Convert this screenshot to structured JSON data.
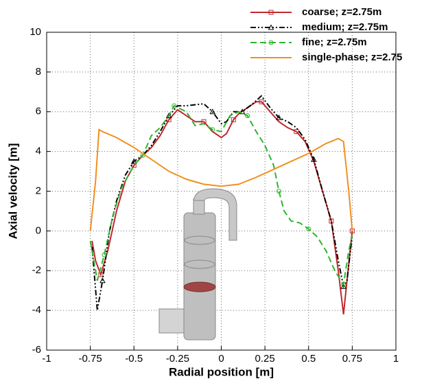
{
  "chart_data": {
    "type": "line",
    "x_label": "Radial position [m]",
    "y_label": "Axial velocity [m]",
    "xlim": [
      -1,
      1
    ],
    "ylim": [
      -6,
      10
    ],
    "xticks": [
      -1,
      -0.75,
      -0.5,
      -0.25,
      0,
      0.25,
      0.5,
      0.75,
      1
    ],
    "yticks": [
      -6,
      -4,
      -2,
      0,
      2,
      4,
      6,
      8,
      10
    ],
    "grid": true,
    "legend": "top-right",
    "series": [
      {
        "name": "coarse; z=2.75m",
        "color": "#c0272d",
        "dash": "solid",
        "marker": "square",
        "x": [
          -0.74,
          -0.72,
          -0.69,
          -0.65,
          -0.6,
          -0.55,
          -0.5,
          -0.45,
          -0.4,
          -0.35,
          -0.3,
          -0.25,
          -0.2,
          -0.15,
          -0.1,
          -0.05,
          0,
          0.03,
          0.07,
          0.1,
          0.15,
          0.2,
          0.23,
          0.28,
          0.33,
          0.38,
          0.43,
          0.48,
          0.53,
          0.58,
          0.63,
          0.67,
          0.7,
          0.72,
          0.75
        ],
        "values": [
          -0.5,
          -1.5,
          -2.2,
          -1.0,
          1.0,
          2.5,
          3.3,
          3.8,
          4.2,
          4.8,
          5.6,
          6.1,
          5.8,
          5.5,
          5.5,
          5.0,
          4.7,
          4.9,
          5.6,
          5.9,
          6.2,
          6.5,
          6.5,
          6.0,
          5.5,
          5.2,
          5.0,
          4.5,
          3.5,
          2.0,
          0.5,
          -2.0,
          -4.2,
          -2.5,
          0
        ]
      },
      {
        "name": "medium; z=2.75m",
        "color": "#000000",
        "dash": "dashdotdot",
        "marker": "triangle",
        "x": [
          -0.74,
          -0.71,
          -0.68,
          -0.64,
          -0.6,
          -0.55,
          -0.5,
          -0.45,
          -0.4,
          -0.35,
          -0.3,
          -0.25,
          -0.2,
          -0.1,
          -0.05,
          0,
          0.03,
          0.07,
          0.12,
          0.18,
          0.23,
          0.28,
          0.33,
          0.38,
          0.43,
          0.48,
          0.53,
          0.58,
          0.63,
          0.67,
          0.7,
          0.72,
          0.75
        ],
        "values": [
          -0.8,
          -4.0,
          -2.5,
          0.0,
          1.5,
          2.8,
          3.5,
          3.8,
          4.3,
          5.0,
          5.8,
          6.3,
          6.3,
          6.4,
          6.0,
          5.4,
          5.5,
          6.0,
          6.0,
          6.4,
          6.8,
          6.2,
          5.7,
          5.5,
          5.2,
          4.6,
          3.6,
          2.0,
          0.5,
          -1.5,
          -2.8,
          -2.5,
          -0.2
        ]
      },
      {
        "name": "fine; z=2.75m",
        "color": "#2db52d",
        "dash": "dashed",
        "marker": "circle",
        "x": [
          -0.75,
          -0.71,
          -0.67,
          -0.62,
          -0.57,
          -0.5,
          -0.45,
          -0.4,
          -0.35,
          -0.3,
          -0.27,
          -0.2,
          -0.15,
          -0.1,
          -0.05,
          0,
          0.05,
          0.1,
          0.15,
          0.2,
          0.25,
          0.3,
          0.33,
          0.36,
          0.4,
          0.45,
          0.5,
          0.55,
          0.6,
          0.65,
          0.7,
          0.73,
          0.75
        ],
        "values": [
          -0.5,
          -2.5,
          -1.2,
          0.8,
          2.2,
          3.3,
          3.8,
          4.8,
          5.2,
          5.8,
          6.3,
          6.0,
          5.3,
          5.4,
          5.1,
          5.0,
          5.8,
          6.0,
          5.8,
          5.0,
          4.3,
          3.3,
          2.0,
          1.0,
          0.5,
          0.4,
          0.1,
          -0.3,
          -1.0,
          -2.0,
          -2.7,
          -1.0,
          -0.2
        ]
      },
      {
        "name": "single-phase; z=2.75",
        "color": "#f0901e",
        "dash": "solid",
        "marker": "none",
        "x": [
          -0.75,
          -0.72,
          -0.7,
          -0.68,
          -0.6,
          -0.5,
          -0.4,
          -0.3,
          -0.2,
          -0.1,
          0,
          0.1,
          0.2,
          0.3,
          0.4,
          0.5,
          0.6,
          0.67,
          0.7,
          0.73,
          0.75
        ],
        "values": [
          0,
          2.5,
          5.1,
          5.0,
          4.7,
          4.2,
          3.6,
          3.0,
          2.6,
          2.35,
          2.25,
          2.35,
          2.7,
          3.1,
          3.5,
          3.9,
          4.4,
          4.65,
          4.5,
          2.0,
          0
        ]
      }
    ]
  }
}
